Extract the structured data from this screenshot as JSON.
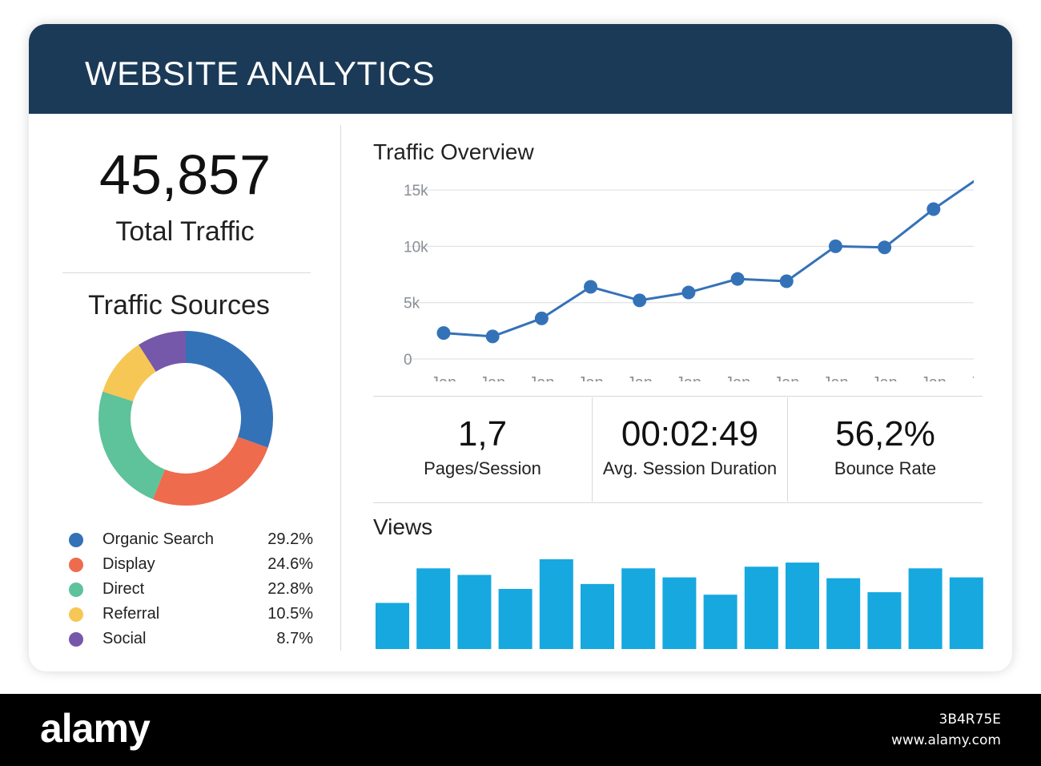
{
  "header": {
    "title": "WEBSITE ANALYTICS"
  },
  "summary": {
    "total_value": "45,857",
    "total_label": "Total Traffic"
  },
  "sources": {
    "title": "Traffic Sources",
    "items": [
      {
        "label": "Organic Search",
        "pct": "29.2%",
        "value": 29.2,
        "color": "#3472b8"
      },
      {
        "label": "Display",
        "pct": "24.6%",
        "value": 24.6,
        "color": "#ee6b4d"
      },
      {
        "label": "Direct",
        "pct": "22.8%",
        "value": 22.8,
        "color": "#5ec29a"
      },
      {
        "label": "Referral",
        "pct": "10.5%",
        "value": 10.5,
        "color": "#f6c755"
      },
      {
        "label": "Social",
        "pct": "8.7%",
        "value": 8.7,
        "color": "#7558aa"
      }
    ]
  },
  "overview": {
    "title": "Traffic Overview"
  },
  "stats": [
    {
      "value": "1,7",
      "label": "Pages/Session"
    },
    {
      "value": "00:02:49",
      "label": "Avg. Session Duration"
    },
    {
      "value": "56,2%",
      "label": "Bounce Rate"
    }
  ],
  "views": {
    "title": "Views"
  },
  "footer": {
    "logo": "alamy",
    "image_id": "3B4R75E",
    "site": "www.alamy.com"
  },
  "chart_data": [
    {
      "type": "pie",
      "title": "Traffic Sources",
      "categories": [
        "Organic Search",
        "Display",
        "Direct",
        "Referral",
        "Social"
      ],
      "values": [
        29.2,
        24.6,
        22.8,
        10.5,
        8.7
      ],
      "colors": [
        "#3472b8",
        "#ee6b4d",
        "#5ec29a",
        "#f6c755",
        "#7558aa"
      ]
    },
    {
      "type": "line",
      "title": "Traffic Overview",
      "x": [
        "Jan",
        "Jan",
        "Jan",
        "Jan",
        "Jan",
        "Jan",
        "Jan",
        "Jan",
        "Jan",
        "Jan",
        "Jan",
        "Jan"
      ],
      "series": [
        {
          "values": [
            2300,
            2000,
            3600,
            6400,
            5200,
            5900,
            7100,
            6900,
            10000,
            9900,
            13300,
            16300
          ]
        }
      ],
      "yticks": [
        "0",
        "5k",
        "10k",
        "15k"
      ],
      "ylim": [
        0,
        16500
      ],
      "grid": true,
      "color": "#3472b8"
    },
    {
      "type": "bar",
      "title": "Views",
      "values": [
        56,
        98,
        90,
        73,
        109,
        79,
        98,
        87,
        66,
        100,
        105,
        86,
        69,
        98,
        87
      ],
      "color": "#16a8df"
    }
  ]
}
